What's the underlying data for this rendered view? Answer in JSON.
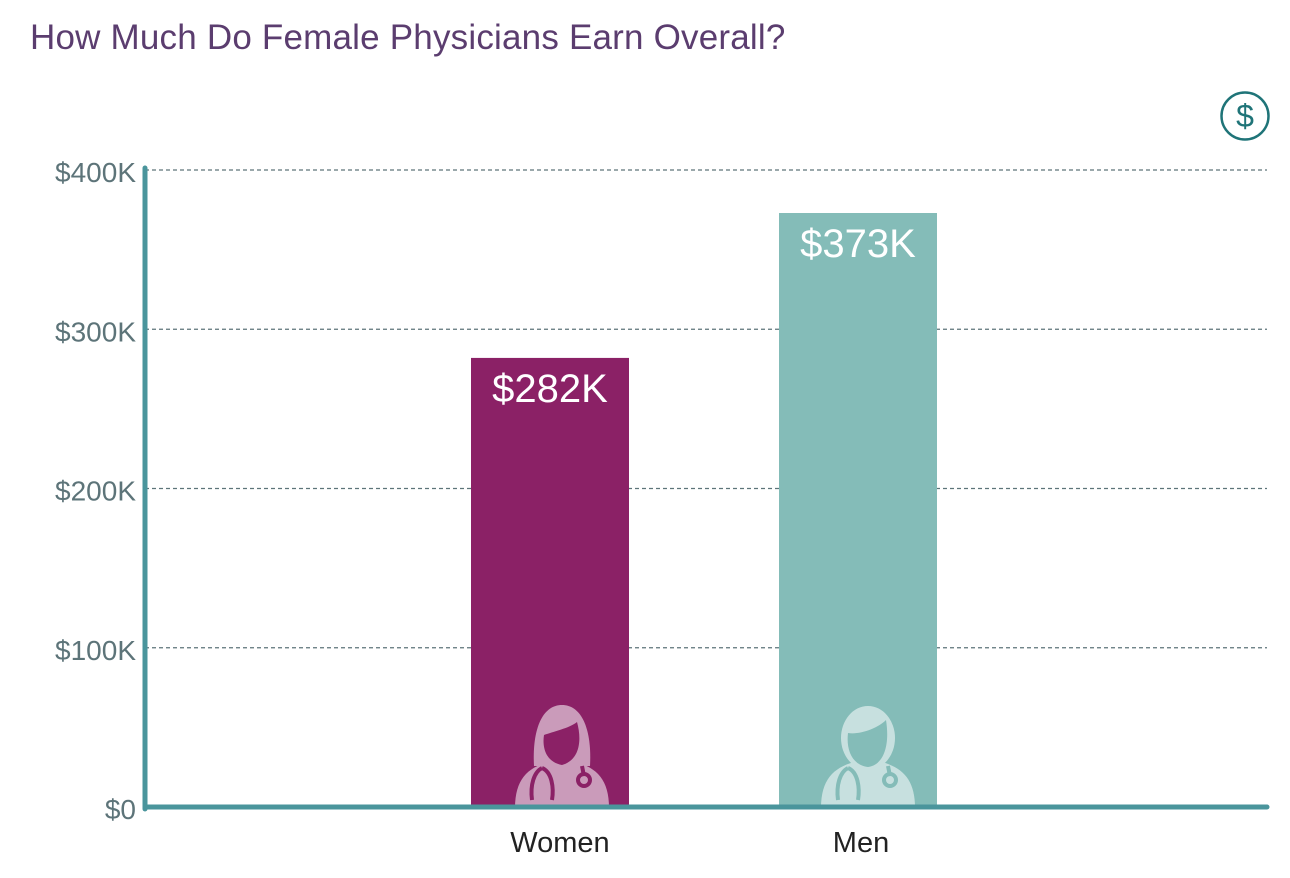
{
  "chart_data": {
    "type": "bar",
    "title": "How Much Do Female Physicians Earn Overall?",
    "categories": [
      "Women",
      "Men"
    ],
    "values": [
      282,
      373
    ],
    "data_labels": [
      "$282K",
      "$373K"
    ],
    "unit": "thousand USD",
    "ylim": [
      0,
      400
    ],
    "yticks": [
      0,
      100,
      200,
      300,
      400
    ],
    "ytick_labels": [
      "$0",
      "$100K",
      "$200K",
      "$300K",
      "$400K"
    ],
    "xlabel": "",
    "ylabel": "",
    "grid": "horizontal dashed",
    "legend": "none",
    "colors": {
      "Women": "#8b2166",
      "Men": "#84bcb8",
      "axis": "#4a959c",
      "grid": "#5d7479",
      "title": "#5b3d6f",
      "icon": "#1f7478"
    },
    "bar_icons": [
      "female-doctor-icon",
      "male-doctor-icon"
    ]
  },
  "header_icon": "dollar-circle-icon"
}
